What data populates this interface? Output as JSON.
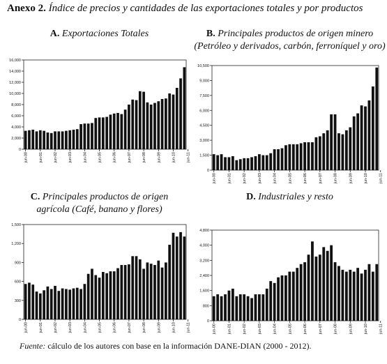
{
  "header": {
    "prefix": "Anexo 2.",
    "title": "Índice de precios y cantidades de las exportaciones totales y por productos"
  },
  "footer": {
    "source_label": "Fuente:",
    "source_text": "cálculo de los autores con base en la información  DANE-DIAN (2000 - 2012)."
  },
  "bar_color": "#111111",
  "chart_data": [
    {
      "type": "bar",
      "letter": "A.",
      "title_line1": "Exportaciones Totales",
      "title_line2": "",
      "xlabel": "",
      "ylabel": "",
      "ylim": [
        0,
        16000
      ],
      "yticks": [
        "0",
        "2,000",
        "4,000",
        "6,000",
        "8,000",
        "10,000",
        "12,000",
        "14,000",
        "16,000"
      ],
      "ytick_values": [
        0,
        2000,
        4000,
        6000,
        8000,
        10000,
        12000,
        14000,
        16000
      ],
      "xticks": [
        "jun-00",
        "jun-01",
        "jun-02",
        "jun-03",
        "jun-04",
        "jun-05",
        "jun-06",
        "jun-07",
        "jun-08",
        "jun-09",
        "jun-10",
        "jun-11"
      ],
      "xtick_index": [
        0,
        4,
        8,
        12,
        16,
        20,
        24,
        28,
        32,
        36,
        40,
        44
      ],
      "values": [
        3300,
        3400,
        3500,
        3200,
        3400,
        3300,
        3000,
        2900,
        3200,
        3200,
        3200,
        3300,
        3400,
        3500,
        3600,
        4500,
        4600,
        4600,
        4700,
        5600,
        5700,
        5700,
        5800,
        6200,
        6400,
        6500,
        6300,
        7100,
        8000,
        8900,
        8800,
        10400,
        10300,
        8400,
        8000,
        8300,
        8600,
        9000,
        9100,
        10000,
        9800,
        11000,
        12700,
        14700
      ]
    },
    {
      "type": "bar",
      "letter": "B.",
      "title_line1": "Principales productos de origen minero",
      "title_line2": "(Petróleo y derivados, carbón, ferroníquel y oro)",
      "xlabel": "",
      "ylabel": "",
      "ylim": [
        0,
        10500
      ],
      "yticks": [
        "0",
        "1,500",
        "3,000",
        "4,500",
        "6,000",
        "7,500",
        "9,000",
        "10,500"
      ],
      "ytick_values": [
        0,
        1500,
        3000,
        4500,
        6000,
        7500,
        9000,
        10500
      ],
      "xticks": [
        "jun-00",
        "jun-01",
        "jun-02",
        "jun-03",
        "jun-04",
        "jun-05",
        "jun-06",
        "jun-07",
        "jun-08",
        "jun-09",
        "jun-10",
        "jun-11"
      ],
      "xtick_index": [
        0,
        4,
        8,
        12,
        16,
        20,
        24,
        28,
        32,
        36,
        40,
        44
      ],
      "values": [
        1600,
        1500,
        1600,
        1300,
        1300,
        1400,
        1000,
        1100,
        1200,
        1200,
        1300,
        1400,
        1600,
        1500,
        1500,
        1700,
        2100,
        2100,
        2200,
        2500,
        2600,
        2600,
        2600,
        2700,
        2800,
        2800,
        2800,
        3300,
        3400,
        3700,
        4000,
        5600,
        5600,
        3700,
        3600,
        4000,
        4300,
        5400,
        5700,
        6500,
        6400,
        7000,
        8400,
        10300
      ]
    },
    {
      "type": "bar",
      "letter": "C.",
      "title_line1": "Principales productos de origen",
      "title_line2": "agrícola (Café, banano y flores)",
      "xlabel": "",
      "ylabel": "",
      "ylim": [
        0,
        1500
      ],
      "yticks": [
        "0",
        "300",
        "600",
        "900",
        "1,200",
        "1,500"
      ],
      "ytick_values": [
        0,
        300,
        600,
        900,
        1200,
        1500
      ],
      "xticks": [
        "jun-00",
        "jun-01",
        "jun-02",
        "jun-03",
        "jun-04",
        "jun-05",
        "jun-06",
        "jun-07",
        "jun-08",
        "jun-09",
        "jun-10",
        "jun-11"
      ],
      "xtick_index": [
        0,
        4,
        8,
        12,
        16,
        20,
        24,
        28,
        32,
        36,
        40,
        44
      ],
      "values": [
        560,
        580,
        550,
        440,
        410,
        460,
        520,
        480,
        530,
        450,
        490,
        480,
        470,
        490,
        500,
        480,
        560,
        720,
        800,
        700,
        660,
        750,
        730,
        760,
        760,
        810,
        860,
        860,
        870,
        1000,
        1000,
        950,
        800,
        900,
        880,
        860,
        930,
        820,
        900,
        1180,
        1370,
        1310,
        1380,
        1310
      ]
    },
    {
      "type": "bar",
      "letter": "D.",
      "title_line1": "Industriales y resto",
      "title_line2": "",
      "xlabel": "",
      "ylabel": "",
      "ylim": [
        0,
        4800
      ],
      "yticks": [
        "0",
        "800",
        "1,600",
        "2,400",
        "3,200",
        "4,000",
        "4,800"
      ],
      "ytick_values": [
        0,
        800,
        1600,
        2400,
        3200,
        4000,
        4800
      ],
      "xticks": [
        "jun-00",
        "jun-01",
        "jun-02",
        "jun-03",
        "jun-04",
        "jun-05",
        "jun-06",
        "jun-07",
        "jun-08",
        "jun-09",
        "jun-10",
        "jun-11"
      ],
      "xtick_index": [
        0,
        4,
        8,
        12,
        16,
        20,
        24,
        28,
        32,
        36,
        40,
        44
      ],
      "values": [
        1300,
        1400,
        1300,
        1400,
        1600,
        1700,
        1300,
        1400,
        1400,
        1300,
        1200,
        1400,
        1400,
        1400,
        1700,
        2100,
        2000,
        2300,
        2400,
        2400,
        2600,
        2600,
        2800,
        3000,
        3100,
        3500,
        4200,
        3400,
        3500,
        3900,
        3700,
        4000,
        3100,
        2900,
        2700,
        2600,
        2700,
        2600,
        2800,
        2500,
        2700,
        3000,
        2600,
        3000
      ]
    }
  ]
}
